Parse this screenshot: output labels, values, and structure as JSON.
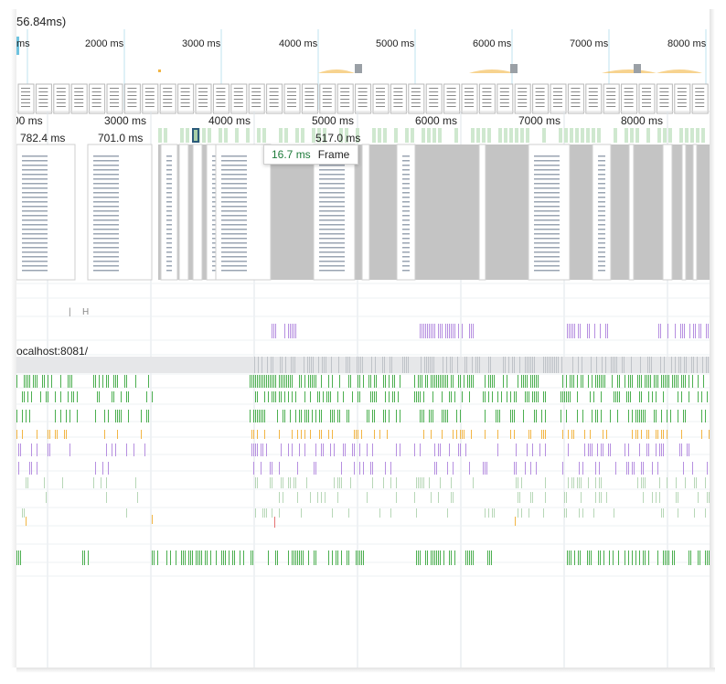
{
  "header": {
    "title": "56.84ms)"
  },
  "overview": {
    "ticks": [
      {
        "text": "ms"
      },
      {
        "text": "2000 ms"
      },
      {
        "text": "3000 ms"
      },
      {
        "text": "4000 ms"
      },
      {
        "text": "5000 ms"
      },
      {
        "text": "6000 ms"
      },
      {
        "text": "7000 ms"
      },
      {
        "text": "8000 ms"
      }
    ]
  },
  "main": {
    "ticks": [
      {
        "text": "00 ms"
      },
      {
        "text": "3000 ms"
      },
      {
        "text": "4000 ms"
      },
      {
        "text": "5000 ms"
      },
      {
        "text": "6000 ms"
      },
      {
        "text": "7000 ms"
      },
      {
        "text": "8000 ms"
      }
    ],
    "frames": [
      {
        "text": "782.4 ms"
      },
      {
        "text": "701.0 ms"
      },
      {
        "text": "517.0 ms"
      }
    ]
  },
  "tooltip": {
    "duration": "16.7 ms",
    "label": "Frame"
  },
  "tracks": {
    "small_label": "H",
    "network_host": "ocalhost:8081/"
  },
  "colors": {
    "gridline": "#dfe5ea",
    "overview_marker": "#6fc3df",
    "frame_green": "#cfe8cf",
    "frame_grey": "#c4c4c4",
    "cpu_yellow": "#f2b544",
    "cpu_purple": "#b68fe0",
    "scripting_green": "#4caf50",
    "selection_border": "#2b5a7a"
  }
}
